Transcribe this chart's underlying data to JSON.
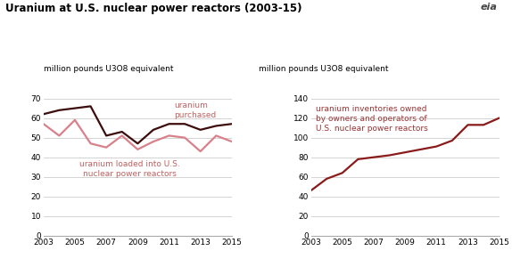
{
  "title": "Uranium at U.S. nuclear power reactors (2003-15)",
  "ylabel": "million pounds U3O8 equivalent",
  "years_left": [
    2003,
    2004,
    2005,
    2006,
    2007,
    2008,
    2009,
    2010,
    2011,
    2012,
    2013,
    2014,
    2015
  ],
  "purchased": [
    62,
    64,
    65,
    66,
    51,
    53,
    47,
    54,
    57,
    57,
    54,
    56,
    57
  ],
  "loaded": [
    57,
    51,
    59,
    47,
    45,
    51,
    44,
    48,
    51,
    50,
    43,
    51,
    48
  ],
  "years_right": [
    2003,
    2004,
    2005,
    2006,
    2007,
    2008,
    2009,
    2010,
    2011,
    2012,
    2013,
    2014,
    2015
  ],
  "inventories": [
    46,
    58,
    64,
    78,
    80,
    82,
    85,
    88,
    91,
    97,
    113,
    113,
    120
  ],
  "color_purchased": "#3d0c0c",
  "color_loaded": "#d9808a",
  "color_inventories": "#8b1a1a",
  "ylim_left": [
    0,
    70
  ],
  "ylim_right": [
    0,
    140
  ],
  "yticks_left": [
    0,
    10,
    20,
    30,
    40,
    50,
    60,
    70
  ],
  "yticks_right": [
    0,
    20,
    40,
    60,
    80,
    100,
    120,
    140
  ],
  "xticks": [
    2003,
    2005,
    2007,
    2009,
    2011,
    2013,
    2015
  ],
  "label_purchased": "uranium\npurchased",
  "label_loaded": "uranium loaded into U.S.\nnuclear power reactors",
  "label_inventories": "uranium inventories owned\nby owners and operators of\nU.S. nuclear power reactors",
  "background_color": "#ffffff",
  "grid_color": "#cccccc",
  "annotation_purchased_color": "#c06060",
  "annotation_loaded_color": "#c06060",
  "annotation_inventories_color": "#993333"
}
